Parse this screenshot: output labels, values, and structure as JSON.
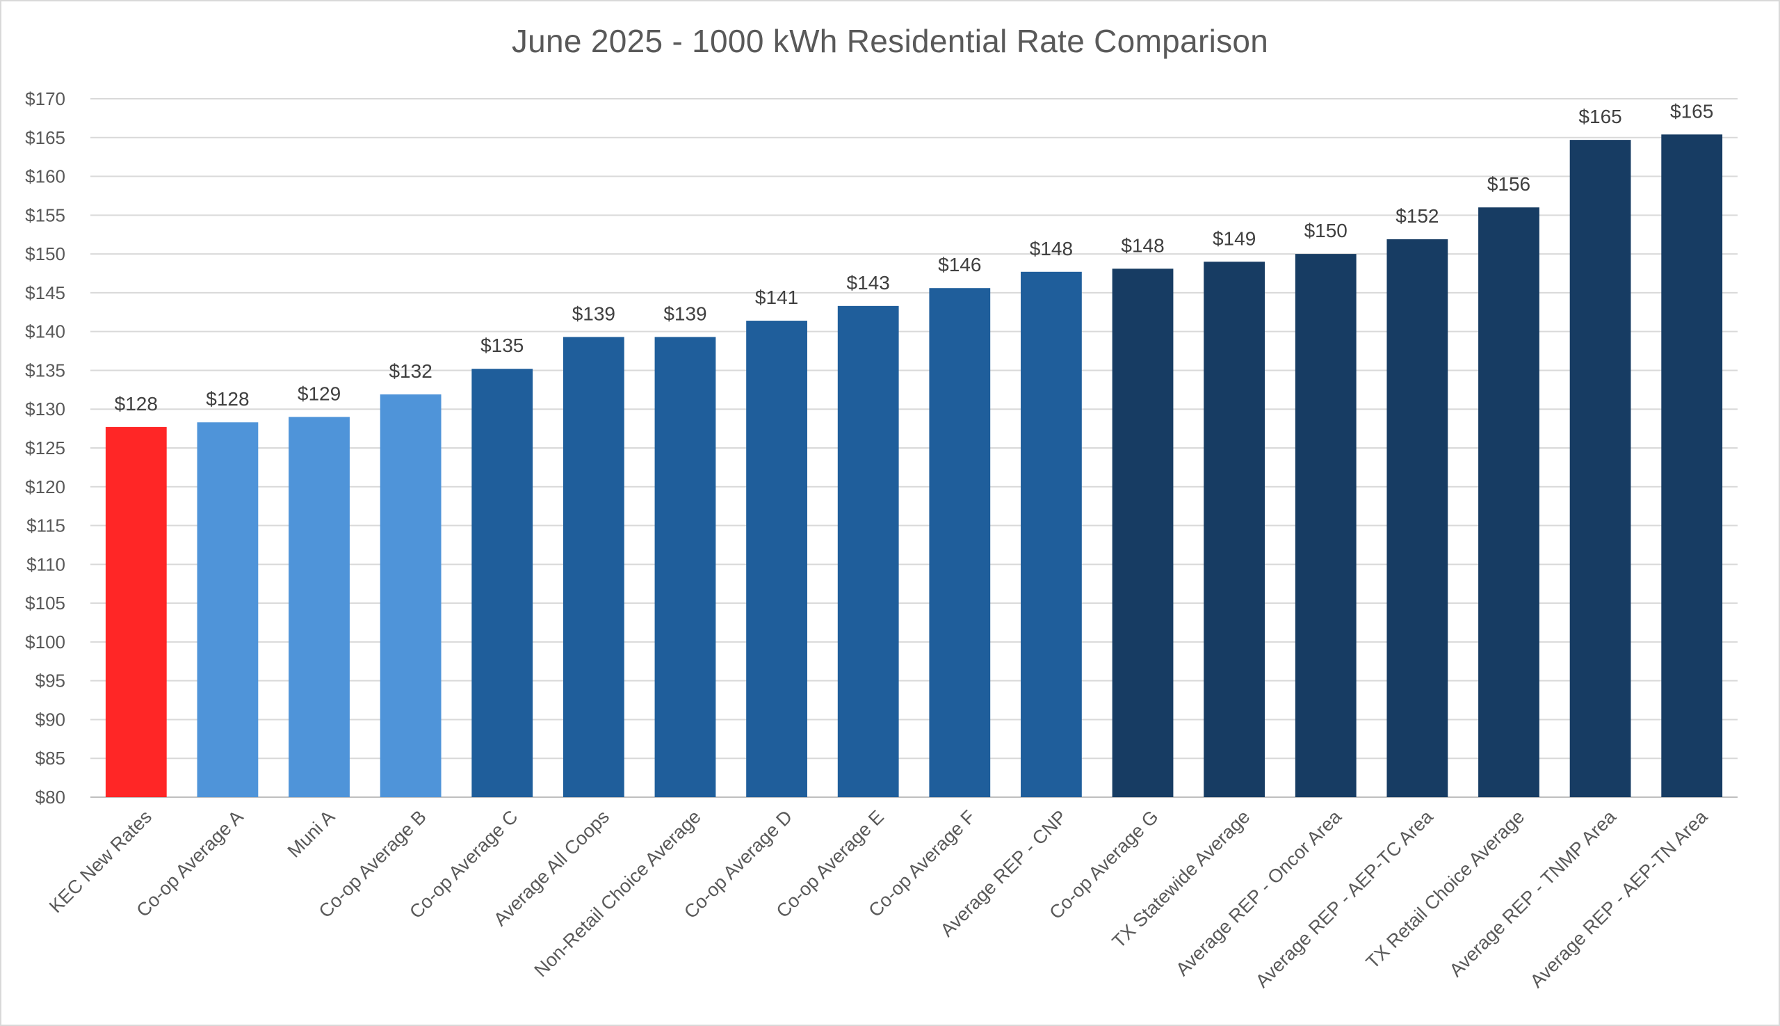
{
  "chart_data": {
    "type": "bar",
    "title": "June 2025 - 1000 kWh Residential Rate Comparison",
    "xlabel": "",
    "ylabel": "",
    "ylim": [
      80,
      170
    ],
    "ytick_step": 5,
    "ytick_prefix": "$",
    "grid": true,
    "legend": "none",
    "categories": [
      "KEC New Rates",
      "Co-op Average A",
      "Muni A",
      "Co-op Average B",
      "Co-op Average C",
      "Average All Coops",
      "Non-Retail Choice Average",
      "Co-op Average D",
      "Co-op Average E",
      "Co-op Average F",
      "Average REP - CNP",
      "Co-op Average G",
      "TX Statewide Average",
      "Average REP - Oncor Area",
      "Average REP - AEP-TC Area",
      "TX Retail Choice Average",
      "Average REP - TNMP Area",
      "Average REP - AEP-TN Area"
    ],
    "values": [
      127.7,
      128.3,
      129.0,
      131.9,
      135.2,
      139.3,
      139.3,
      141.4,
      143.3,
      145.6,
      147.7,
      148.1,
      149.0,
      150.0,
      151.9,
      156.0,
      164.7,
      165.4
    ],
    "data_labels": [
      "$128",
      "$128",
      "$129",
      "$132",
      "$135",
      "$139",
      "$139",
      "$141",
      "$143",
      "$146",
      "$148",
      "$148",
      "$149",
      "$150",
      "$152",
      "$156",
      "$165",
      "$165"
    ],
    "bar_colors": [
      "#ff2626",
      "#4f94d9",
      "#4f94d9",
      "#4f94d9",
      "#1f5e9b",
      "#1f5e9b",
      "#1f5e9b",
      "#1f5e9b",
      "#1f5e9b",
      "#1f5e9b",
      "#1f5e9b",
      "#173c63",
      "#173c63",
      "#173c63",
      "#173c63",
      "#173c63",
      "#173c63",
      "#173c63"
    ],
    "colors": {
      "grid": "#d9d9d9",
      "axis": "#bfbfbf"
    }
  }
}
